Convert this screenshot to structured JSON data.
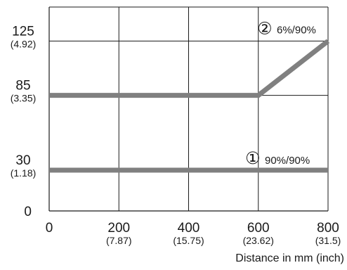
{
  "chart_data": {
    "type": "line",
    "xlabel": "Distance in mm (inch)",
    "ylabel": "",
    "xlim": [
      0,
      800
    ],
    "ylim": [
      0,
      150
    ],
    "grid": true,
    "x_ticks": [
      {
        "value": 0,
        "label": "0",
        "sub": ""
      },
      {
        "value": 200,
        "label": "200",
        "sub": "(7.87)"
      },
      {
        "value": 400,
        "label": "400",
        "sub": "(15.75)"
      },
      {
        "value": 600,
        "label": "600",
        "sub": "(23.62)"
      },
      {
        "value": 800,
        "label": "800",
        "sub": "(31.5)"
      }
    ],
    "y_ticks": [
      {
        "value": 0,
        "label": "0",
        "sub": ""
      },
      {
        "value": 30,
        "label": "30",
        "sub": "(1.18)"
      },
      {
        "value": 85,
        "label": "85",
        "sub": "(3.35)"
      },
      {
        "value": 125,
        "label": "125",
        "sub": "(4.92)"
      }
    ],
    "series": [
      {
        "name": "90%/90%",
        "marker": "①",
        "x": [
          0,
          800
        ],
        "y": [
          30,
          30
        ]
      },
      {
        "name": "6%/90%",
        "marker": "②",
        "x": [
          0,
          600,
          800
        ],
        "y": [
          85,
          85,
          125
        ]
      }
    ],
    "line_color": "#808080"
  }
}
